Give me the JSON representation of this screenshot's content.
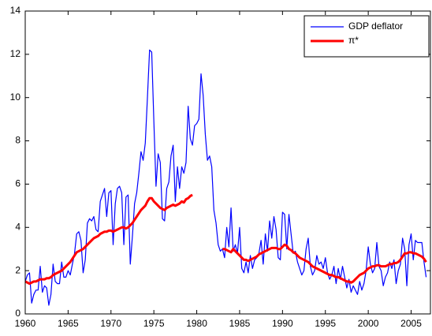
{
  "chart_data": {
    "type": "line",
    "x": [
      1960,
      1960.25,
      1960.5,
      1960.75,
      1961,
      1961.25,
      1961.5,
      1961.75,
      1962,
      1962.25,
      1962.5,
      1962.75,
      1963,
      1963.25,
      1963.5,
      1963.75,
      1964,
      1964.25,
      1964.5,
      1964.75,
      1965,
      1965.25,
      1965.5,
      1965.75,
      1966,
      1966.25,
      1966.5,
      1966.75,
      1967,
      1967.25,
      1967.5,
      1967.75,
      1968,
      1968.25,
      1968.5,
      1968.75,
      1969,
      1969.25,
      1969.5,
      1969.75,
      1970,
      1970.25,
      1970.5,
      1970.75,
      1971,
      1971.25,
      1971.5,
      1971.75,
      1972,
      1972.25,
      1972.5,
      1972.75,
      1973,
      1973.25,
      1973.5,
      1973.75,
      1974,
      1974.25,
      1974.5,
      1974.75,
      1975,
      1975.25,
      1975.5,
      1975.75,
      1976,
      1976.25,
      1976.5,
      1976.75,
      1977,
      1977.25,
      1977.5,
      1977.75,
      1978,
      1978.25,
      1978.5,
      1978.75,
      1979,
      1979.25,
      1979.5,
      1979.75,
      1980,
      1980.25,
      1980.5,
      1980.75,
      1981,
      1981.25,
      1981.5,
      1981.75,
      1982,
      1982.25,
      1982.5,
      1982.75,
      1983,
      1983.25,
      1983.5,
      1983.75,
      1984,
      1984.25,
      1984.5,
      1984.75,
      1985,
      1985.25,
      1985.5,
      1985.75,
      1986,
      1986.25,
      1986.5,
      1986.75,
      1987,
      1987.25,
      1987.5,
      1987.75,
      1988,
      1988.25,
      1988.5,
      1988.75,
      1989,
      1989.25,
      1989.5,
      1989.75,
      1990,
      1990.25,
      1990.5,
      1990.75,
      1991,
      1991.25,
      1991.5,
      1991.75,
      1992,
      1992.25,
      1992.5,
      1992.75,
      1993,
      1993.25,
      1993.5,
      1993.75,
      1994,
      1994.25,
      1994.5,
      1994.75,
      1995,
      1995.25,
      1995.5,
      1995.75,
      1996,
      1996.25,
      1996.5,
      1996.75,
      1997,
      1997.25,
      1997.5,
      1997.75,
      1998,
      1998.25,
      1998.5,
      1998.75,
      1999,
      1999.25,
      1999.5,
      1999.75,
      2000,
      2000.25,
      2000.5,
      2000.75,
      2001,
      2001.25,
      2001.5,
      2001.75,
      2002,
      2002.25,
      2002.5,
      2002.75,
      2003,
      2003.25,
      2003.5,
      2003.75,
      2004,
      2004.25,
      2004.5,
      2004.75,
      2005,
      2005.25,
      2005.5,
      2005.75,
      2006,
      2006.25,
      2006.5,
      2006.75
    ],
    "series": [
      {
        "name": "GDP deflator",
        "color": "#0000ff",
        "width": 1.2,
        "values": [
          1.5,
          1.8,
          1.9,
          0.5,
          0.9,
          1.1,
          1.1,
          2.2,
          1.0,
          1.3,
          1.2,
          0.4,
          0.9,
          2.3,
          1.5,
          1.4,
          1.4,
          2.4,
          1.7,
          1.7,
          2.0,
          1.8,
          2.3,
          2.8,
          3.7,
          3.8,
          3.4,
          1.9,
          2.5,
          4.2,
          4.4,
          4.3,
          4.5,
          3.9,
          3.8,
          5.2,
          5.5,
          5.8,
          4.5,
          5.6,
          5.7,
          3.2,
          5.1,
          5.8,
          5.9,
          5.6,
          3.2,
          5.4,
          5.5,
          2.3,
          3.6,
          5.1,
          5.6,
          6.5,
          7.5,
          7.1,
          7.9,
          10.0,
          12.2,
          12.1,
          8.9,
          5.9,
          7.4,
          7.0,
          4.4,
          4.3,
          5.8,
          6.1,
          7.3,
          7.8,
          5.2,
          6.8,
          5.8,
          6.8,
          6.5,
          7.0,
          9.6,
          8.1,
          7.8,
          8.7,
          8.8,
          9.0,
          11.1,
          10.1,
          8.3,
          7.1,
          7.3,
          6.8,
          4.8,
          4.2,
          3.2,
          2.9,
          3.0,
          2.6,
          4.0,
          3.1,
          4.9,
          2.9,
          3.2,
          2.8,
          4.0,
          2.1,
          1.9,
          2.4,
          1.9,
          2.7,
          2.1,
          2.5,
          2.6,
          2.8,
          3.4,
          2.3,
          3.7,
          2.9,
          4.3,
          3.5,
          4.5,
          3.9,
          2.6,
          2.5,
          4.7,
          4.6,
          3.0,
          4.6,
          3.7,
          2.8,
          2.9,
          2.4,
          2.1,
          1.8,
          2.0,
          3.0,
          3.5,
          2.2,
          1.8,
          2.0,
          2.7,
          2.3,
          2.4,
          2.1,
          2.6,
          1.9,
          1.6,
          1.8,
          2.2,
          1.4,
          2.1,
          1.6,
          2.2,
          1.7,
          1.2,
          1.6,
          1.0,
          1.3,
          1.1,
          0.9,
          1.5,
          1.1,
          1.4,
          2.0,
          3.1,
          2.3,
          1.9,
          2.1,
          3.3,
          2.2,
          2.0,
          1.3,
          1.7,
          1.9,
          2.4,
          2.1,
          2.5,
          1.4,
          2.0,
          2.3,
          3.5,
          3.0,
          1.3,
          3.2,
          3.7,
          2.5,
          3.4,
          3.3,
          3.3,
          3.3,
          2.4,
          1.7
        ]
      },
      {
        "name": "π*",
        "color": "#ff0000",
        "width": 3,
        "values": [
          1.5,
          1.45,
          1.4,
          1.45,
          1.5,
          1.5,
          1.55,
          1.6,
          1.6,
          1.6,
          1.65,
          1.65,
          1.7,
          1.8,
          1.85,
          1.9,
          1.95,
          2.0,
          2.1,
          2.2,
          2.3,
          2.4,
          2.55,
          2.7,
          2.85,
          2.9,
          2.95,
          3.0,
          3.1,
          3.2,
          3.3,
          3.4,
          3.5,
          3.55,
          3.6,
          3.7,
          3.75,
          3.8,
          3.8,
          3.85,
          3.85,
          3.8,
          3.85,
          3.9,
          3.95,
          4.0,
          4.0,
          3.95,
          4.0,
          4.1,
          4.2,
          4.35,
          4.5,
          4.65,
          4.8,
          4.9,
          5.0,
          5.2,
          5.35,
          5.35,
          5.2,
          5.1,
          5.0,
          4.9,
          4.85,
          4.8,
          4.9,
          4.95,
          5.0,
          5.05,
          5.0,
          5.05,
          5.1,
          5.2,
          5.15,
          5.3,
          5.35,
          5.45,
          5.5,
          null,
          null,
          null,
          null,
          null,
          null,
          null,
          null,
          null,
          null,
          null,
          null,
          null,
          3.0,
          3.0,
          2.95,
          2.9,
          2.85,
          3.0,
          2.9,
          2.8,
          2.7,
          2.6,
          2.5,
          2.5,
          2.45,
          2.5,
          2.55,
          2.6,
          2.65,
          2.75,
          2.8,
          2.85,
          2.9,
          2.95,
          3.0,
          3.05,
          3.05,
          3.05,
          3.0,
          3.0,
          3.1,
          3.2,
          3.15,
          3.0,
          2.95,
          2.85,
          2.8,
          2.7,
          2.6,
          2.55,
          2.5,
          2.45,
          2.4,
          2.3,
          2.2,
          2.15,
          2.1,
          2.05,
          2.0,
          1.95,
          1.9,
          1.85,
          1.8,
          1.8,
          1.75,
          1.7,
          1.7,
          1.65,
          1.6,
          1.55,
          1.5,
          1.5,
          1.45,
          1.5,
          1.6,
          1.7,
          1.8,
          1.85,
          1.9,
          2.0,
          2.1,
          2.15,
          2.2,
          2.2,
          2.25,
          2.25,
          2.2,
          2.2,
          2.2,
          2.25,
          2.3,
          2.3,
          2.35,
          2.35,
          2.4,
          2.5,
          2.65,
          2.8,
          2.8,
          2.85,
          2.85,
          2.8,
          2.8,
          2.75,
          2.7,
          2.65,
          2.55,
          2.4
        ]
      }
    ],
    "xlim": [
      1960,
      2007.25
    ],
    "xticks": [
      1960,
      1965,
      1970,
      1975,
      1980,
      1985,
      1990,
      1995,
      2000,
      2005
    ],
    "ylim": [
      0,
      14
    ],
    "yticks": [
      0,
      2,
      4,
      6,
      8,
      10,
      12,
      14
    ],
    "grid": false,
    "legend": "upper right"
  }
}
